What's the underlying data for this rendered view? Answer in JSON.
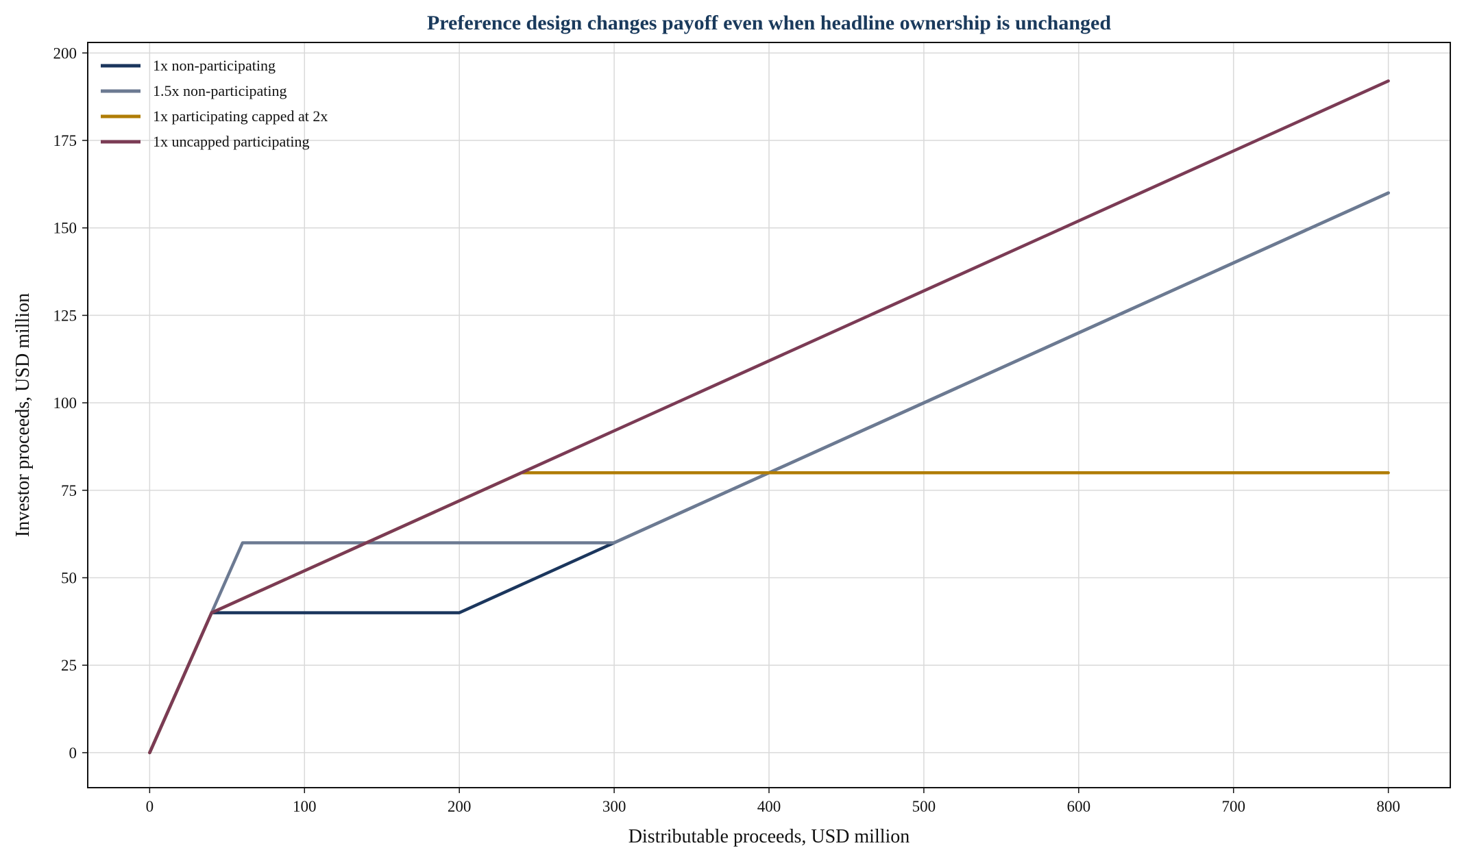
{
  "chart_data": {
    "type": "line",
    "title": "Preference design changes payoff even when headline ownership is unchanged",
    "xlabel": "Distributable proceeds, USD million",
    "ylabel": "Investor proceeds, USD million",
    "xlim": [
      -40,
      840
    ],
    "ylim": [
      -10,
      203
    ],
    "xticks": [
      0,
      100,
      200,
      300,
      400,
      500,
      600,
      700,
      800
    ],
    "yticks": [
      0,
      25,
      50,
      75,
      100,
      125,
      150,
      175,
      200
    ],
    "grid": true,
    "legend_position": "top-left",
    "title_color": "#1a3a5c",
    "series": [
      {
        "name": "1x non-participating",
        "color": "#1b365d",
        "x": [
          0,
          40,
          200,
          300,
          800
        ],
        "y": [
          0,
          40,
          40,
          60,
          160
        ]
      },
      {
        "name": "1.5x non-participating",
        "color": "#6c7a92",
        "x": [
          0,
          40,
          60,
          300,
          800
        ],
        "y": [
          0,
          40,
          60,
          60,
          160
        ]
      },
      {
        "name": "1x participating capped at 2x",
        "color": "#b07d06",
        "x": [
          0,
          40,
          240,
          800
        ],
        "y": [
          0,
          40,
          80,
          80
        ]
      },
      {
        "name": "1x uncapped participating",
        "color": "#7b3b55",
        "x": [
          0,
          40,
          800
        ],
        "y": [
          0,
          40,
          192
        ]
      }
    ]
  }
}
